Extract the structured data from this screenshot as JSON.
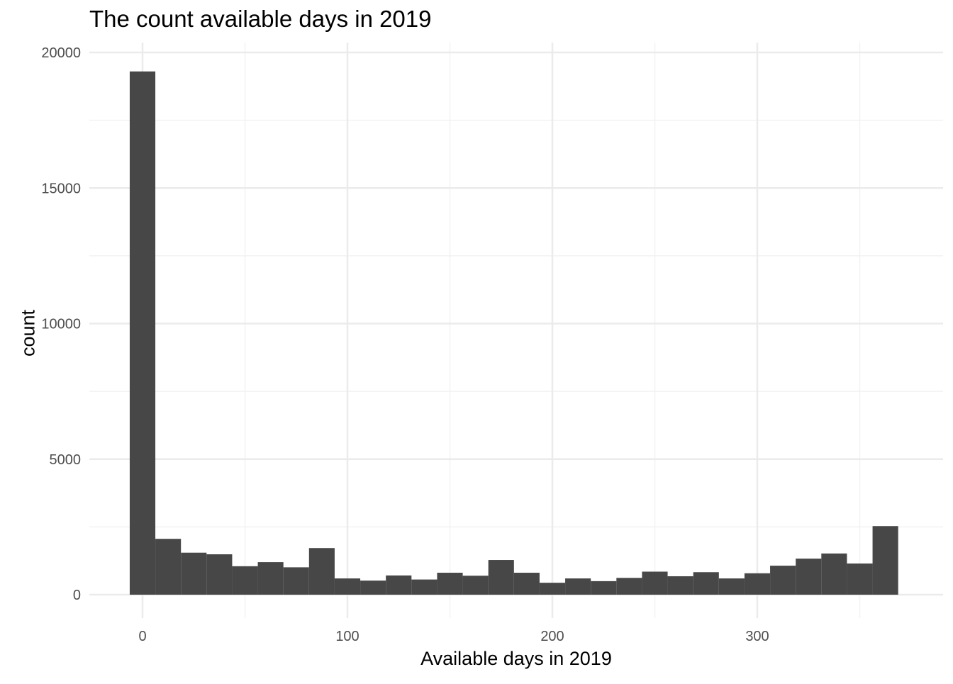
{
  "chart_data": {
    "type": "bar",
    "title": "The count available days in 2019",
    "xlabel": "Available days in 2019",
    "ylabel": "count",
    "bin_width": 12.5,
    "bin_centers": [
      0,
      12.5,
      25,
      37.5,
      50,
      62.5,
      75,
      87.5,
      100,
      112.5,
      125,
      137.5,
      150,
      162.5,
      175,
      187.5,
      200,
      212.5,
      225,
      237.5,
      250,
      262.5,
      275,
      287.5,
      300,
      312.5,
      325,
      337.5,
      350,
      362.5
    ],
    "values": [
      19300,
      2060,
      1550,
      1490,
      1050,
      1200,
      1010,
      1720,
      600,
      520,
      710,
      560,
      810,
      700,
      1280,
      810,
      440,
      600,
      500,
      620,
      850,
      680,
      830,
      600,
      790,
      1070,
      1330,
      1520,
      1150,
      2530
    ],
    "xlim": [
      -6.25,
      368.75
    ],
    "ylim": [
      0,
      20000
    ],
    "x_ticks": [
      0,
      100,
      200,
      300
    ],
    "x_tick_labels": [
      "0",
      "100",
      "200",
      "300"
    ],
    "y_ticks": [
      0,
      5000,
      10000,
      15000,
      20000
    ],
    "y_tick_labels": [
      "0",
      "5000",
      "10000",
      "15000",
      "20000"
    ],
    "grid": true,
    "bar_color": "#474747",
    "grid_color": "#ebebeb"
  }
}
